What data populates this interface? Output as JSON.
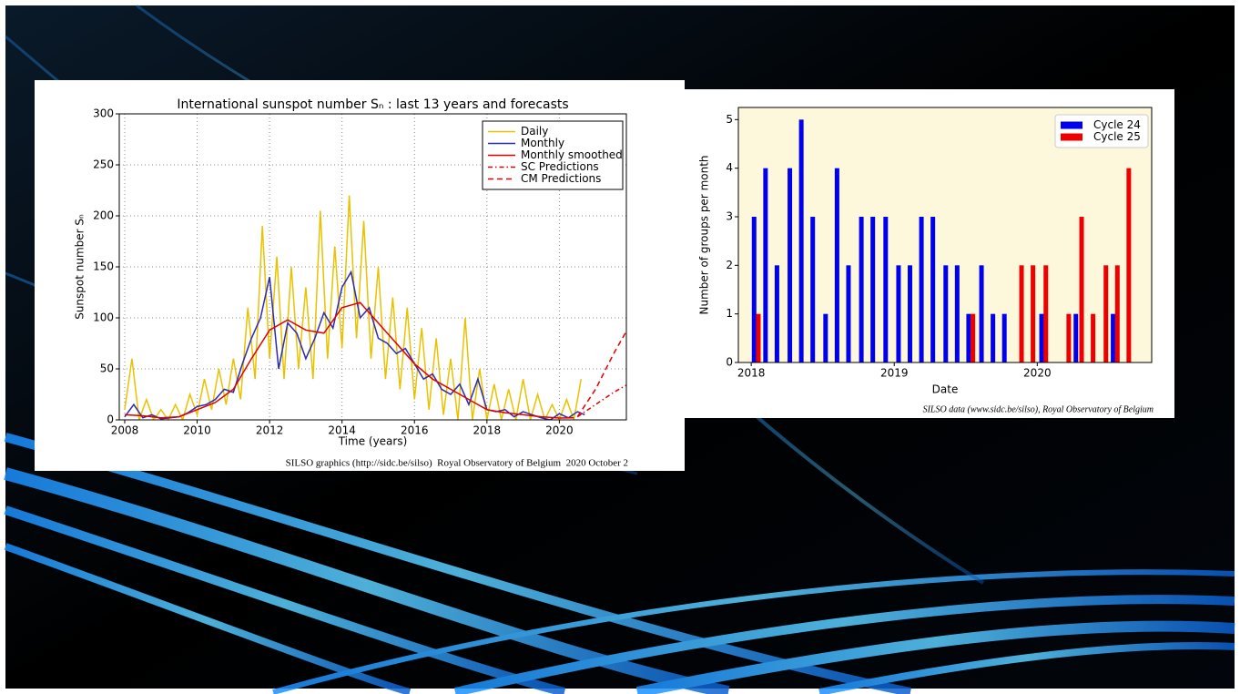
{
  "chart_data": [
    {
      "type": "line",
      "title": "International sunspot number Sₙ : last 13 years and forecasts",
      "xlabel": "Time (years)",
      "ylabel": "Sunspot number Sₙ",
      "footer": "SILSO graphics (http://sidc.be/silso)  Royal Observatory of Belgium  2020 October 2",
      "xlim": [
        2007.85,
        2021.85
      ],
      "xticks": [
        2008,
        2010,
        2012,
        2014,
        2016,
        2018,
        2020
      ],
      "ylim": [
        0,
        300
      ],
      "yticks": [
        0,
        50,
        100,
        150,
        200,
        250,
        300
      ],
      "grid": true,
      "legend": "upper right",
      "series": [
        {
          "name": "Daily",
          "color": "#e8c200",
          "linestyle": "solid",
          "x": [
            2008,
            2008.2,
            2008.4,
            2008.6,
            2008.8,
            2009,
            2009.2,
            2009.4,
            2009.6,
            2009.8,
            2010,
            2010.2,
            2010.4,
            2010.6,
            2010.8,
            2011,
            2011.2,
            2011.4,
            2011.6,
            2011.8,
            2012,
            2012.2,
            2012.4,
            2012.6,
            2012.8,
            2013,
            2013.2,
            2013.4,
            2013.6,
            2013.8,
            2014,
            2014.2,
            2014.4,
            2014.6,
            2014.8,
            2015,
            2015.2,
            2015.4,
            2015.6,
            2015.8,
            2016,
            2016.2,
            2016.4,
            2016.6,
            2016.8,
            2017,
            2017.2,
            2017.4,
            2017.6,
            2017.8,
            2018,
            2018.2,
            2018.4,
            2018.6,
            2018.8,
            2019,
            2019.2,
            2019.4,
            2019.6,
            2019.8,
            2020,
            2020.2,
            2020.4,
            2020.6
          ],
          "values": [
            10,
            60,
            0,
            20,
            0,
            10,
            0,
            15,
            0,
            25,
            5,
            40,
            10,
            50,
            15,
            60,
            20,
            110,
            40,
            190,
            60,
            160,
            40,
            150,
            50,
            130,
            40,
            205,
            60,
            170,
            70,
            220,
            80,
            195,
            60,
            150,
            40,
            120,
            30,
            110,
            20,
            90,
            10,
            80,
            5,
            60,
            0,
            100,
            0,
            50,
            0,
            35,
            0,
            30,
            0,
            40,
            0,
            25,
            0,
            15,
            0,
            20,
            0,
            40
          ]
        },
        {
          "name": "Monthly",
          "color": "#2b2bb0",
          "linestyle": "solid",
          "x": [
            2008,
            2008.25,
            2008.5,
            2008.75,
            2009,
            2009.25,
            2009.5,
            2009.75,
            2010,
            2010.25,
            2010.5,
            2010.75,
            2011,
            2011.25,
            2011.5,
            2011.75,
            2012,
            2012.25,
            2012.5,
            2012.75,
            2013,
            2013.25,
            2013.5,
            2013.75,
            2014,
            2014.25,
            2014.5,
            2014.75,
            2015,
            2015.25,
            2015.5,
            2015.75,
            2016,
            2016.25,
            2016.5,
            2016.75,
            2017,
            2017.25,
            2017.5,
            2017.75,
            2018,
            2018.25,
            2018.5,
            2018.75,
            2019,
            2019.25,
            2019.5,
            2019.75,
            2020,
            2020.25,
            2020.5,
            2020.7
          ],
          "values": [
            3,
            15,
            2,
            5,
            1,
            2,
            3,
            7,
            13,
            15,
            20,
            30,
            27,
            55,
            80,
            100,
            140,
            50,
            95,
            85,
            60,
            80,
            105,
            90,
            130,
            145,
            100,
            110,
            80,
            75,
            65,
            70,
            55,
            40,
            45,
            30,
            25,
            35,
            15,
            40,
            10,
            8,
            10,
            3,
            8,
            5,
            2,
            0,
            6,
            2,
            8,
            5
          ]
        },
        {
          "name": "Monthly smoothed",
          "color": "#e00000",
          "linestyle": "solid",
          "x": [
            2008,
            2008.5,
            2009,
            2009.5,
            2010,
            2010.5,
            2011,
            2011.5,
            2012,
            2012.5,
            2013,
            2013.5,
            2014,
            2014.5,
            2015,
            2015.5,
            2016,
            2016.5,
            2017,
            2017.5,
            2018,
            2018.5,
            2019,
            2019.5,
            2020,
            2020.4
          ],
          "values": [
            5,
            4,
            2,
            3,
            10,
            17,
            30,
            60,
            88,
            98,
            88,
            85,
            110,
            115,
            95,
            75,
            55,
            40,
            30,
            20,
            10,
            7,
            5,
            3,
            1.8,
            2
          ]
        },
        {
          "name": "SC Predictions",
          "color": "#e00000",
          "linestyle": "dashdot",
          "x": [
            2020.5,
            2021,
            2021.5,
            2021.9
          ],
          "values": [
            3,
            15,
            27,
            35
          ]
        },
        {
          "name": "CM Predictions",
          "color": "#e00000",
          "linestyle": "dashed",
          "x": [
            2020.5,
            2021,
            2021.5,
            2021.9
          ],
          "values": [
            3,
            30,
            65,
            90
          ]
        }
      ]
    },
    {
      "type": "bar",
      "xlabel": "Date",
      "ylabel": "Number of groups per month",
      "footer": "SILSO data (www.sidc.be/silso), Royal Observatory of Belgium",
      "xlim": [
        2017.91,
        2020.8
      ],
      "xticks": [
        2018,
        2019,
        2020
      ],
      "ylim": [
        0,
        5.25
      ],
      "yticks": [
        0,
        1,
        2,
        3,
        4,
        5
      ],
      "grid": false,
      "legend": "upper right",
      "background": "#fdf8dc",
      "series": [
        {
          "name": "Cycle 24",
          "color": "#0000ee",
          "x": [
            2018.02,
            2018.1,
            2018.18,
            2018.27,
            2018.35,
            2018.43,
            2018.52,
            2018.6,
            2018.68,
            2018.77,
            2018.85,
            2018.94,
            2019.03,
            2019.11,
            2019.19,
            2019.27,
            2019.36,
            2019.44,
            2019.52,
            2019.61,
            2019.69,
            2019.77,
            2020.03,
            2020.27,
            2020.53
          ],
          "values": [
            3,
            4,
            2,
            4,
            5,
            3,
            1,
            4,
            2,
            3,
            3,
            3,
            2,
            2,
            3,
            3,
            2,
            2,
            1,
            2,
            1,
            1,
            1,
            1,
            1
          ]
        },
        {
          "name": "Cycle 25",
          "color": "#ee0000",
          "x": [
            2018.05,
            2019.55,
            2019.89,
            2019.97,
            2020.06,
            2020.22,
            2020.31,
            2020.39,
            2020.48,
            2020.56,
            2020.64
          ],
          "values": [
            1,
            1,
            2,
            2,
            2,
            1,
            3,
            1,
            2,
            2,
            4
          ]
        }
      ]
    }
  ]
}
